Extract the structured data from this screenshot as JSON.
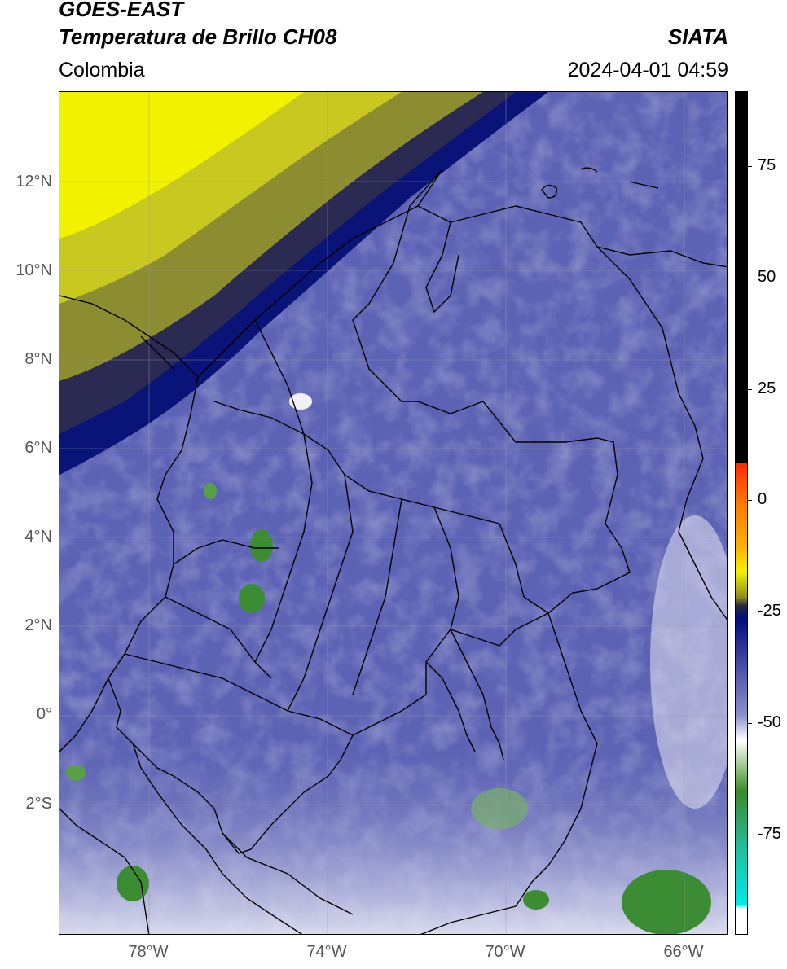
{
  "header": {
    "satellite": "GOES-EAST",
    "product": "Temperatura de Brillo CH08",
    "region": "Colombia",
    "agency": "SIATA",
    "datetime": "2024-04-01 04:59"
  },
  "axes": {
    "lat_labels": [
      "12°N",
      "10°N",
      "8°N",
      "6°N",
      "4°N",
      "2°N",
      "0°",
      "2°S"
    ],
    "lon_labels": [
      "78°W",
      "74°W",
      "70°W",
      "66°W"
    ]
  },
  "colorbar": {
    "labels": [
      "75",
      "50",
      "25",
      "0",
      "-25",
      "-50",
      "-75"
    ],
    "colors": {
      "black": "#000000",
      "red": "#ff2a00",
      "orange": "#ff9a00",
      "yellow": "#f2f200",
      "olive": "#8c8c20",
      "dark": "#2a2a40",
      "navy": "#000a7a",
      "blue": "#3a40a0",
      "lavender": "#8a90c8",
      "white": "#ffffff",
      "green": "#3a8a2a",
      "teal": "#20c0a0",
      "cyan": "#00e8e8"
    }
  },
  "map": {
    "colors": {
      "background": "#5c62b4",
      "cold_top_yellow": "#f0f000",
      "olive": "#9a9a30",
      "dark_band": "#1a1a5a",
      "navy": "#0a1478",
      "cloud_white": "#e8e8f4",
      "cloud_green": "#3c8c34",
      "border": "#000000",
      "grid": "#9999aa"
    }
  }
}
